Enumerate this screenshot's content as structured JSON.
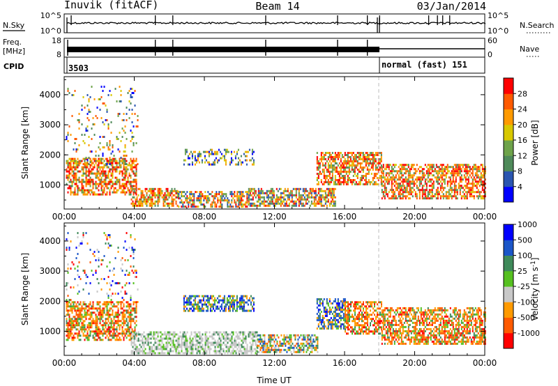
{
  "header": {
    "station": "Inuvik (fitACF)",
    "beam": "Beam 14",
    "date": "03/Jan/2014"
  },
  "top_panels": {
    "nsky_label": "N.Sky",
    "nsearch_label": "N.Search",
    "nsky_ticks": [
      "10^5",
      "10^0"
    ],
    "nsearch_ticks": [
      "10^5",
      "10^0"
    ],
    "freq_label": "Freq.",
    "freq_unit": "[MHz]",
    "freq_ticks": [
      "18",
      "8"
    ],
    "nave_label": "Nave",
    "nave_ticks": [
      "60",
      "0"
    ],
    "cpid_label": "CPID",
    "cpid_first": "3503",
    "cpid_second": "normal (fast) 151"
  },
  "colors": {
    "power_scale": [
      "#0000ff",
      "#2a55b0",
      "#4f8a5a",
      "#6ea34a",
      "#d8c800",
      "#ff9a00",
      "#ff5a00",
      "#ff0000"
    ],
    "velocity_scale": [
      "#ff0000",
      "#ff5a00",
      "#ff9a00",
      "#c8c8c8",
      "#56c020",
      "#3f8a5a",
      "#1b56c8",
      "#0000ff"
    ]
  },
  "chart_data": [
    {
      "type": "heatmap",
      "name": "power",
      "ylabel": "Slant Range [km]",
      "xlabel": "",
      "x_ticks": [
        "00:00",
        "04:00",
        "08:00",
        "12:00",
        "16:00",
        "20:00",
        "00:00"
      ],
      "x_range_hours": [
        0,
        24
      ],
      "y_ticks": [
        1000,
        2000,
        3000,
        4000
      ],
      "ylim": [
        200,
        4600
      ],
      "colorbar_label": "Power [dB]",
      "colorbar_ticks": [
        4,
        8,
        12,
        16,
        20,
        24,
        28
      ],
      "mode_change_hour": 18.1,
      "regions": [
        {
          "t0": 0.1,
          "t1": 4.1,
          "r0": 700,
          "r1": 1900,
          "level": "high"
        },
        {
          "t0": 3.8,
          "t1": 6.5,
          "r0": 300,
          "r1": 900,
          "level": "high"
        },
        {
          "t0": 6.5,
          "t1": 10.5,
          "r0": 300,
          "r1": 800,
          "level": "mixed"
        },
        {
          "t0": 10.5,
          "t1": 15.5,
          "r0": 300,
          "r1": 900,
          "level": "mixed"
        },
        {
          "t0": 14.4,
          "t1": 18.1,
          "r0": 1000,
          "r1": 2100,
          "level": "high"
        },
        {
          "t0": 18.1,
          "t1": 24.0,
          "r0": 550,
          "r1": 1700,
          "level": "high"
        },
        {
          "t0": 0.1,
          "t1": 4.2,
          "r0": 1700,
          "r1": 4300,
          "level": "sparse"
        },
        {
          "t0": 6.8,
          "t1": 10.8,
          "r0": 1700,
          "r1": 2200,
          "level": "weak"
        }
      ]
    },
    {
      "type": "heatmap",
      "name": "velocity",
      "ylabel": "Slant Range [km]",
      "xlabel": "Time UT",
      "x_ticks": [
        "00:00",
        "04:00",
        "08:00",
        "12:00",
        "16:00",
        "20:00",
        "00:00"
      ],
      "x_range_hours": [
        0,
        24
      ],
      "y_ticks": [
        1000,
        2000,
        3000,
        4000
      ],
      "ylim": [
        200,
        4600
      ],
      "colorbar_label": "Velocity [m s^-1]",
      "colorbar_ticks": [
        -1000,
        -500,
        -100,
        -25,
        25,
        100,
        500,
        1000
      ],
      "mode_change_hour": 18.1,
      "regions": [
        {
          "t0": 0.1,
          "t1": 4.1,
          "r0": 700,
          "r1": 2000,
          "level": "neg"
        },
        {
          "t0": 3.8,
          "t1": 11.0,
          "r0": 300,
          "r1": 1000,
          "level": "ground"
        },
        {
          "t0": 11.0,
          "t1": 14.5,
          "r0": 300,
          "r1": 900,
          "level": "mixed"
        },
        {
          "t0": 14.4,
          "t1": 16.0,
          "r0": 1100,
          "r1": 2100,
          "level": "pos"
        },
        {
          "t0": 16.0,
          "t1": 18.1,
          "r0": 900,
          "r1": 2000,
          "level": "neg"
        },
        {
          "t0": 18.1,
          "t1": 24.0,
          "r0": 600,
          "r1": 1800,
          "level": "neg"
        },
        {
          "t0": 0.1,
          "t1": 4.2,
          "r0": 2000,
          "r1": 4300,
          "level": "sparse"
        },
        {
          "t0": 6.8,
          "t1": 10.8,
          "r0": 1700,
          "r1": 2200,
          "level": "pos"
        }
      ]
    }
  ]
}
